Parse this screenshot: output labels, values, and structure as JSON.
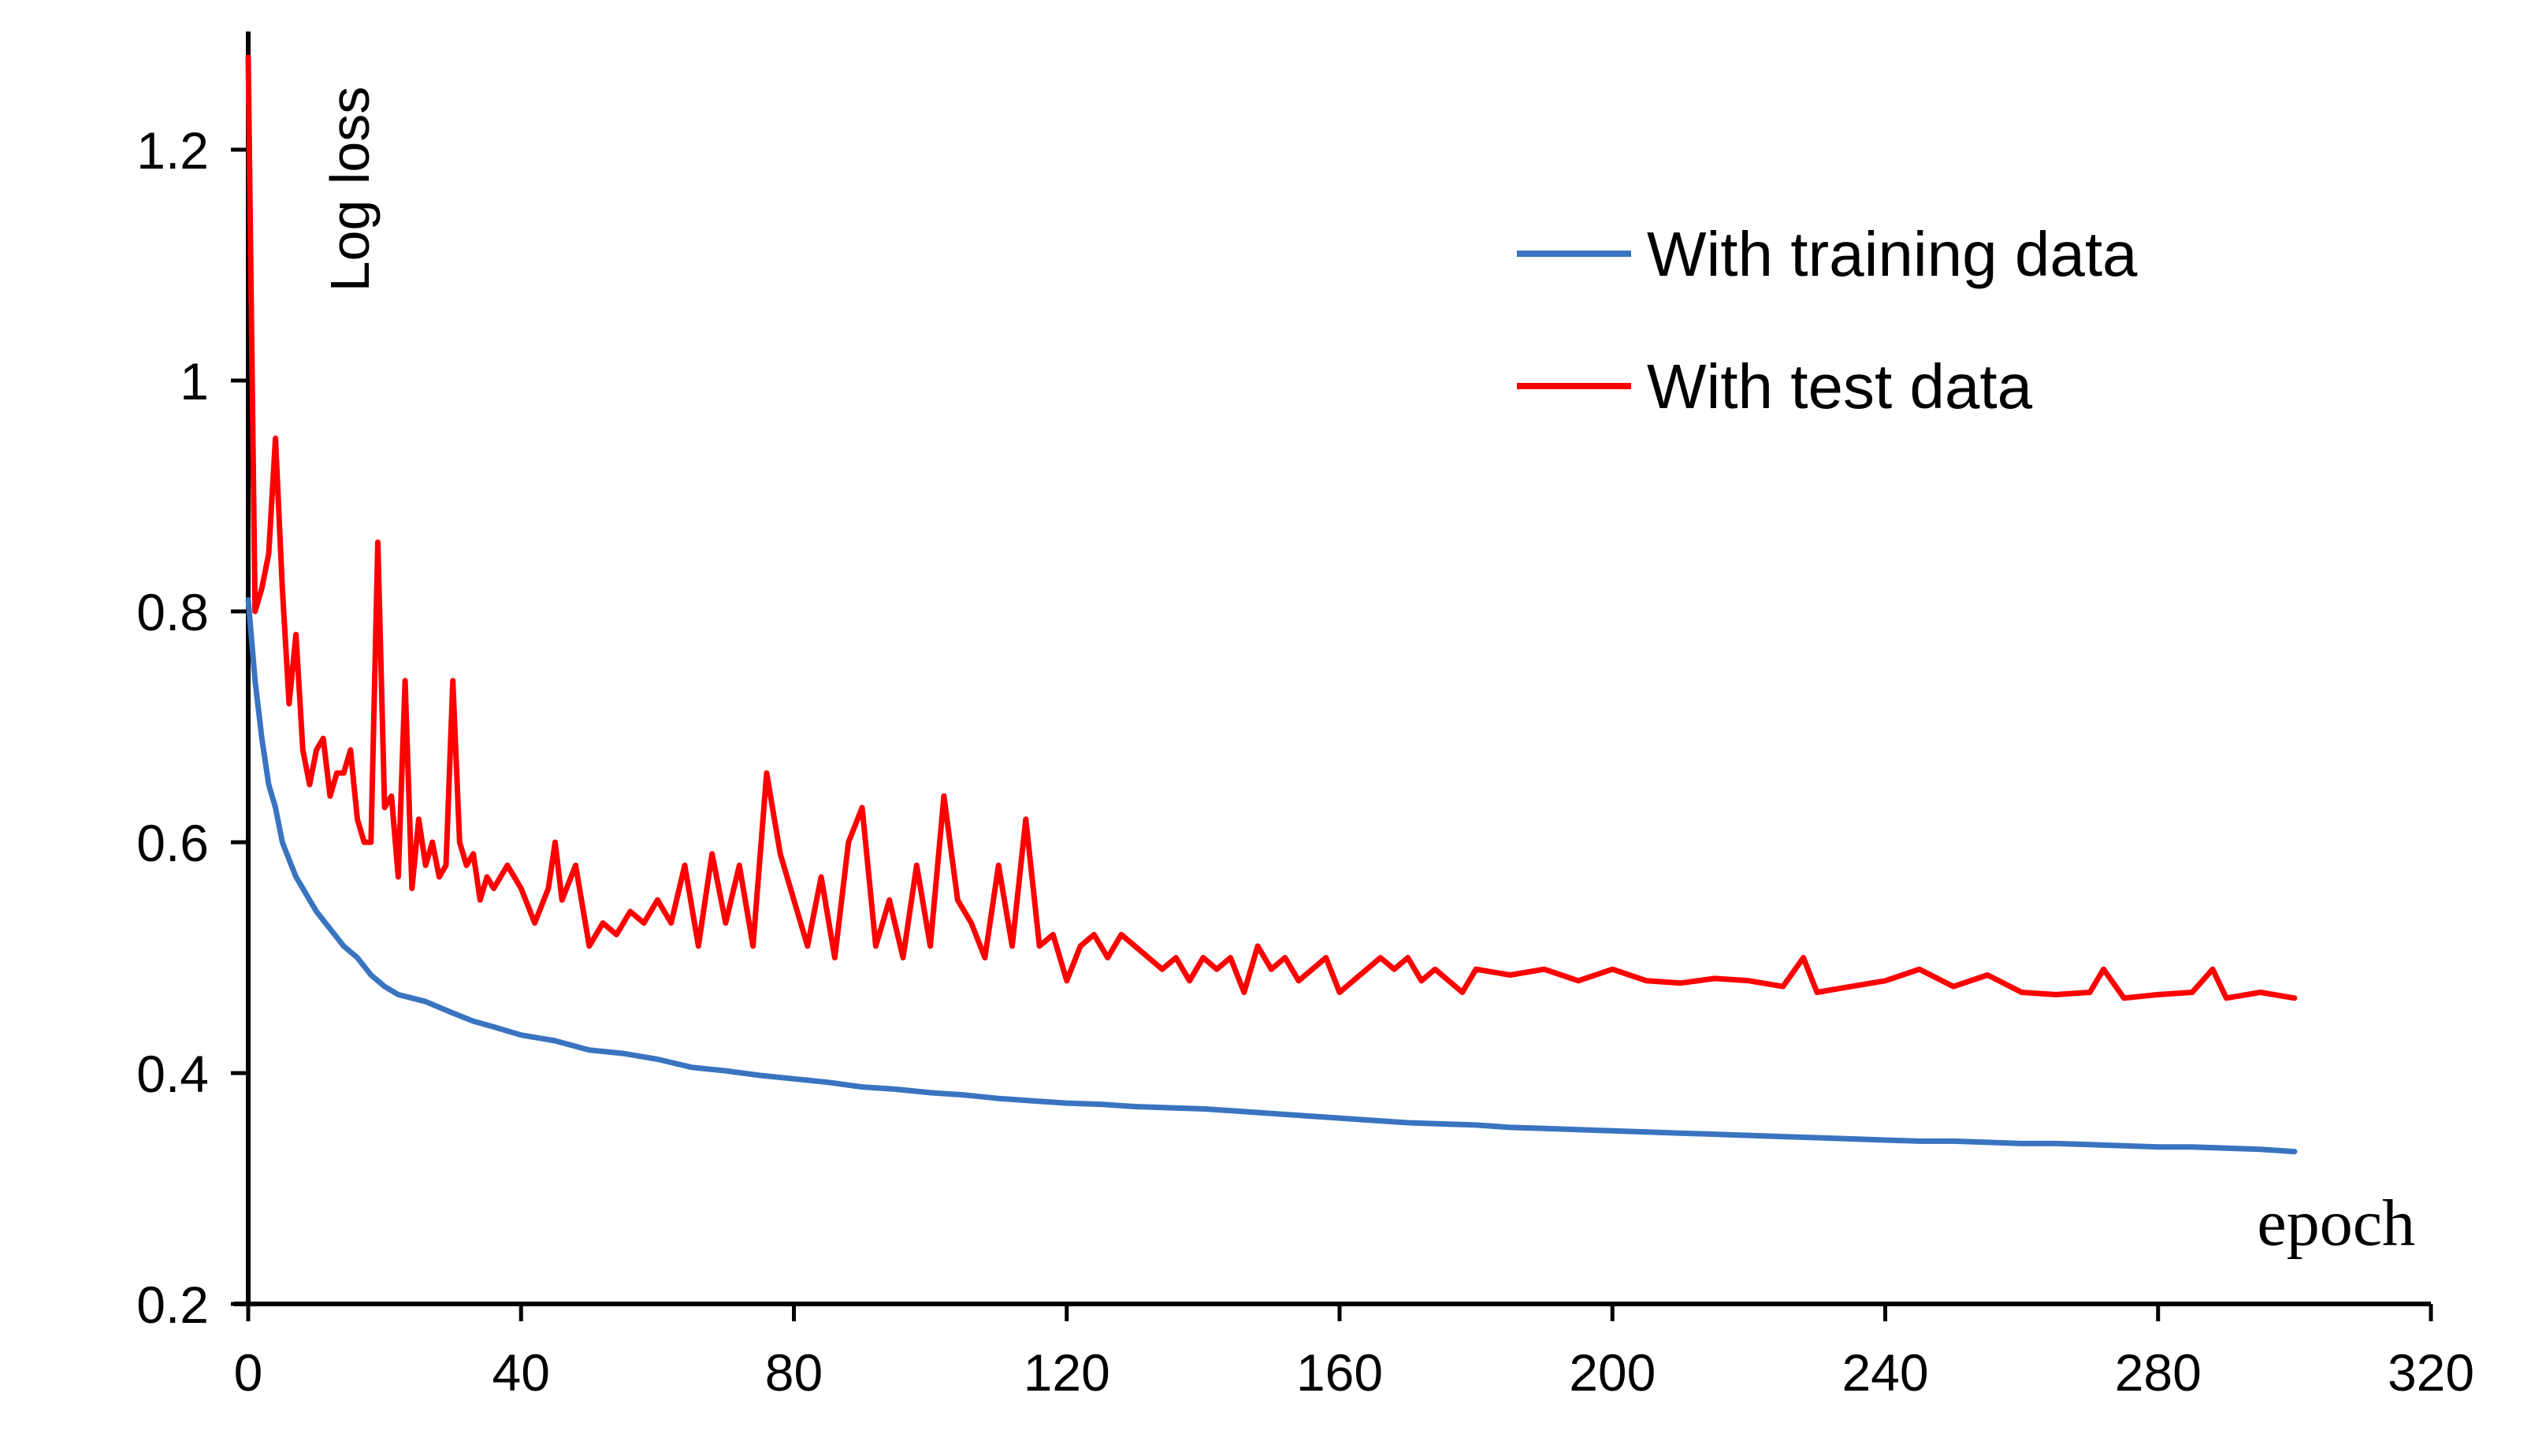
{
  "chart_data": {
    "type": "line",
    "title": "",
    "xlabel": "epoch",
    "ylabel": "Log loss",
    "xlim": [
      0,
      320
    ],
    "ylim": [
      0.2,
      1.3
    ],
    "xticks": [
      0,
      40,
      80,
      120,
      160,
      200,
      240,
      280,
      320
    ],
    "yticks": [
      0.2,
      0.4,
      0.6,
      0.8,
      1.0,
      1.2
    ],
    "xtick_labels": [
      "0",
      "40",
      "80",
      "120",
      "160",
      "200",
      "240",
      "280",
      "320"
    ],
    "ytick_labels": [
      "0.2",
      "0.4",
      "0.6",
      "0.8",
      "1",
      "1.2"
    ],
    "grid": false,
    "legend_position": "top-right",
    "series": [
      {
        "name": "With training data",
        "color": "#3a74c0",
        "x": [
          0,
          1,
          2,
          3,
          4,
          5,
          6,
          7,
          8,
          9,
          10,
          12,
          14,
          16,
          18,
          20,
          22,
          24,
          26,
          28,
          30,
          33,
          36,
          40,
          45,
          50,
          55,
          60,
          65,
          70,
          75,
          80,
          85,
          90,
          95,
          100,
          105,
          110,
          115,
          120,
          125,
          130,
          135,
          140,
          145,
          150,
          155,
          160,
          165,
          170,
          175,
          180,
          185,
          190,
          195,
          200,
          205,
          210,
          215,
          220,
          225,
          230,
          235,
          240,
          245,
          250,
          255,
          260,
          265,
          270,
          275,
          280,
          285,
          290,
          295,
          300
        ],
        "values": [
          0.81,
          0.74,
          0.69,
          0.65,
          0.63,
          0.6,
          0.585,
          0.57,
          0.56,
          0.55,
          0.54,
          0.525,
          0.51,
          0.5,
          0.485,
          0.475,
          0.468,
          0.465,
          0.462,
          0.457,
          0.452,
          0.445,
          0.44,
          0.433,
          0.428,
          0.42,
          0.417,
          0.412,
          0.405,
          0.402,
          0.398,
          0.395,
          0.392,
          0.388,
          0.386,
          0.383,
          0.381,
          0.378,
          0.376,
          0.374,
          0.373,
          0.371,
          0.37,
          0.369,
          0.367,
          0.365,
          0.363,
          0.361,
          0.359,
          0.357,
          0.356,
          0.355,
          0.353,
          0.352,
          0.351,
          0.35,
          0.349,
          0.348,
          0.347,
          0.346,
          0.345,
          0.344,
          0.343,
          0.342,
          0.341,
          0.341,
          0.34,
          0.339,
          0.339,
          0.338,
          0.337,
          0.336,
          0.336,
          0.335,
          0.334,
          0.332
        ]
      },
      {
        "name": "With test data",
        "color": "#ff0000",
        "x": [
          0,
          1,
          2,
          3,
          4,
          5,
          6,
          7,
          8,
          9,
          10,
          11,
          12,
          13,
          14,
          15,
          16,
          17,
          18,
          19,
          20,
          21,
          22,
          23,
          24,
          25,
          26,
          27,
          28,
          29,
          30,
          31,
          32,
          33,
          34,
          35,
          36,
          38,
          40,
          42,
          44,
          45,
          46,
          48,
          50,
          52,
          54,
          56,
          58,
          60,
          62,
          64,
          66,
          68,
          70,
          72,
          74,
          76,
          78,
          80,
          82,
          84,
          86,
          88,
          90,
          92,
          94,
          96,
          98,
          100,
          102,
          104,
          106,
          108,
          110,
          112,
          114,
          116,
          118,
          120,
          122,
          124,
          126,
          128,
          130,
          132,
          134,
          136,
          138,
          140,
          142,
          144,
          146,
          148,
          150,
          152,
          154,
          156,
          158,
          160,
          162,
          164,
          166,
          168,
          170,
          172,
          174,
          176,
          178,
          180,
          185,
          190,
          195,
          200,
          205,
          210,
          215,
          220,
          225,
          228,
          230,
          235,
          240,
          245,
          250,
          255,
          260,
          265,
          270,
          272,
          275,
          280,
          285,
          288,
          290,
          295,
          300
        ],
        "values": [
          1.28,
          0.8,
          0.82,
          0.85,
          0.95,
          0.82,
          0.72,
          0.78,
          0.68,
          0.65,
          0.68,
          0.69,
          0.64,
          0.66,
          0.66,
          0.68,
          0.62,
          0.6,
          0.6,
          0.86,
          0.63,
          0.64,
          0.57,
          0.74,
          0.56,
          0.62,
          0.58,
          0.6,
          0.57,
          0.58,
          0.74,
          0.6,
          0.58,
          0.59,
          0.55,
          0.57,
          0.56,
          0.58,
          0.56,
          0.53,
          0.56,
          0.6,
          0.55,
          0.58,
          0.51,
          0.53,
          0.52,
          0.54,
          0.53,
          0.55,
          0.53,
          0.58,
          0.51,
          0.59,
          0.53,
          0.58,
          0.51,
          0.66,
          0.59,
          0.55,
          0.51,
          0.57,
          0.5,
          0.6,
          0.63,
          0.51,
          0.55,
          0.5,
          0.58,
          0.51,
          0.64,
          0.55,
          0.53,
          0.5,
          0.58,
          0.51,
          0.62,
          0.51,
          0.52,
          0.48,
          0.51,
          0.52,
          0.5,
          0.52,
          0.51,
          0.5,
          0.49,
          0.5,
          0.48,
          0.5,
          0.49,
          0.5,
          0.47,
          0.51,
          0.49,
          0.5,
          0.48,
          0.49,
          0.5,
          0.47,
          0.48,
          0.49,
          0.5,
          0.49,
          0.5,
          0.48,
          0.49,
          0.48,
          0.47,
          0.49,
          0.485,
          0.49,
          0.48,
          0.49,
          0.48,
          0.478,
          0.482,
          0.48,
          0.475,
          0.5,
          0.47,
          0.475,
          0.48,
          0.49,
          0.475,
          0.485,
          0.47,
          0.468,
          0.47,
          0.49,
          0.465,
          0.468,
          0.47,
          0.49,
          0.465,
          0.47,
          0.465
        ]
      }
    ]
  }
}
